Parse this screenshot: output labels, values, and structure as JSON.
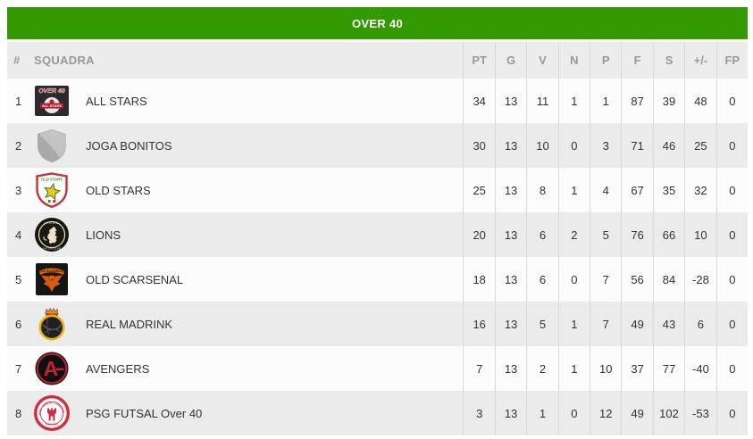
{
  "title": "OVER 40",
  "colors": {
    "accent_green": "#339900",
    "header_bg": "#ececec",
    "header_text": "#999999",
    "row_bg": "#fcfcfc",
    "row_alt_bg": "#ebebeb",
    "cell_text": "#333333",
    "separator": "#d9d9d9"
  },
  "table": {
    "rank_header": "#",
    "team_header": "SQUADRA",
    "stat_headers": [
      "PT",
      "G",
      "V",
      "N",
      "P",
      "F",
      "S",
      "+/-",
      "FP"
    ],
    "rows": [
      {
        "rank": "1",
        "team": "ALL STARS",
        "logo": "all-stars-logo",
        "stats": [
          "34",
          "13",
          "11",
          "1",
          "1",
          "87",
          "39",
          "48",
          "0"
        ]
      },
      {
        "rank": "2",
        "team": "JOGA BONITOS",
        "logo": "joga-bonitos-logo",
        "stats": [
          "30",
          "13",
          "10",
          "0",
          "3",
          "71",
          "46",
          "25",
          "0"
        ]
      },
      {
        "rank": "3",
        "team": "OLD STARS",
        "logo": "old-stars-logo",
        "stats": [
          "25",
          "13",
          "8",
          "1",
          "4",
          "67",
          "35",
          "32",
          "0"
        ]
      },
      {
        "rank": "4",
        "team": "LIONS",
        "logo": "lions-logo",
        "stats": [
          "20",
          "13",
          "6",
          "2",
          "5",
          "76",
          "66",
          "10",
          "0"
        ]
      },
      {
        "rank": "5",
        "team": "OLD SCARSENAL",
        "logo": "old-scarsenal-logo",
        "stats": [
          "18",
          "13",
          "6",
          "0",
          "7",
          "56",
          "84",
          "-28",
          "0"
        ]
      },
      {
        "rank": "6",
        "team": "REAL MADRINK",
        "logo": "real-madrink-logo",
        "stats": [
          "16",
          "13",
          "5",
          "1",
          "7",
          "49",
          "43",
          "6",
          "0"
        ]
      },
      {
        "rank": "7",
        "team": "AVENGERS",
        "logo": "avengers-logo",
        "stats": [
          "7",
          "13",
          "2",
          "1",
          "10",
          "37",
          "77",
          "-40",
          "0"
        ]
      },
      {
        "rank": "8",
        "team": "PSG FUTSAL Over 40",
        "logo": "psg-futsal-logo",
        "stats": [
          "3",
          "13",
          "1",
          "0",
          "12",
          "49",
          "102",
          "-53",
          "0"
        ]
      }
    ]
  }
}
